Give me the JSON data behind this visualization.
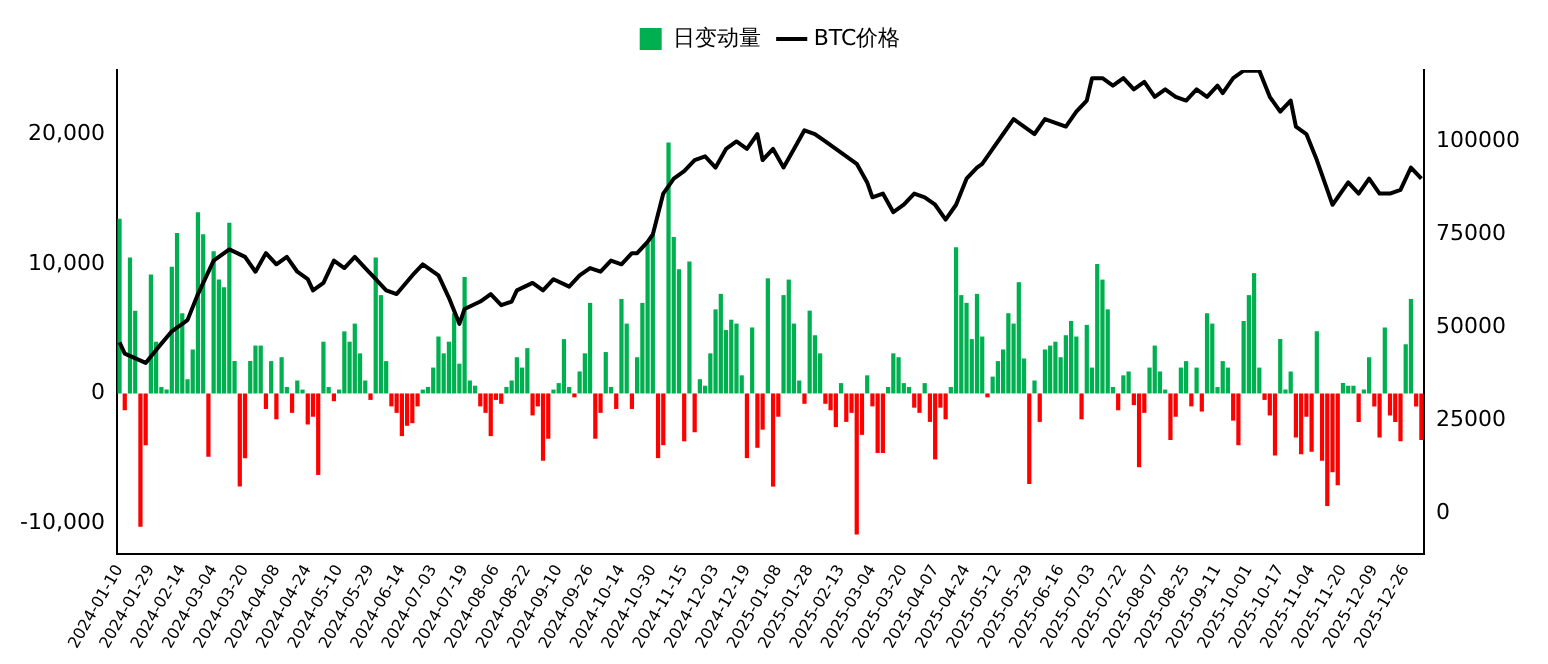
{
  "chart_data": {
    "type": "bar",
    "legend": "top",
    "marker": "none",
    "categories": [
      "2024-01-10",
      null,
      null,
      null,
      null,
      null,
      "2024-01-29",
      null,
      null,
      null,
      null,
      null,
      "2024-02-14",
      null,
      null,
      null,
      null,
      null,
      "2024-03-04",
      null,
      null,
      null,
      null,
      null,
      "2024-03-20",
      null,
      null,
      null,
      null,
      null,
      "2024-04-08",
      null,
      null,
      null,
      null,
      null,
      "2024-04-24",
      null,
      null,
      null,
      null,
      null,
      "2024-05-10",
      null,
      null,
      null,
      null,
      null,
      "2024-05-29",
      null,
      null,
      null,
      null,
      null,
      "2024-06-14",
      null,
      null,
      null,
      null,
      null,
      "2024-07-03",
      null,
      null,
      null,
      null,
      null,
      "2024-07-19",
      null,
      null,
      null,
      null,
      null,
      "2024-08-06",
      null,
      null,
      null,
      null,
      null,
      "2024-08-22",
      null,
      null,
      null,
      null,
      null,
      "2024-09-10",
      null,
      null,
      null,
      null,
      null,
      "2024-09-26",
      null,
      null,
      null,
      null,
      null,
      "2024-10-14",
      null,
      null,
      null,
      null,
      null,
      "2024-10-30",
      null,
      null,
      null,
      null,
      null,
      "2024-11-15",
      null,
      null,
      null,
      null,
      null,
      "2024-12-03",
      null,
      null,
      null,
      null,
      null,
      "2024-12-19",
      null,
      null,
      null,
      null,
      null,
      "2025-01-08",
      null,
      null,
      null,
      null,
      null,
      "2025-01-28",
      null,
      null,
      null,
      null,
      null,
      "2025-02-13",
      null,
      null,
      null,
      null,
      null,
      "2025-03-04",
      null,
      null,
      null,
      null,
      null,
      "2025-03-20",
      null,
      null,
      null,
      null,
      null,
      "2025-04-07",
      null,
      null,
      null,
      null,
      null,
      "2025-04-24",
      null,
      null,
      null,
      null,
      null,
      "2025-05-12",
      null,
      null,
      null,
      null,
      null,
      "2025-05-29",
      null,
      null,
      null,
      null,
      null,
      "2025-06-16",
      null,
      null,
      null,
      null,
      null,
      "2025-07-03",
      null,
      null,
      null,
      null,
      null,
      "2025-07-22",
      null,
      null,
      null,
      null,
      null,
      "2025-08-07",
      null,
      null,
      null,
      null,
      null,
      "2025-08-25",
      null,
      null,
      null,
      null,
      null,
      "2025-09-11",
      null,
      null,
      null,
      null,
      null,
      "2025-10-01",
      null,
      null,
      null,
      null,
      null,
      "2025-10-17",
      null,
      null,
      null,
      null,
      null,
      "2025-11-04",
      null,
      null,
      null,
      null,
      null,
      "2025-11-20",
      null,
      null,
      null,
      null,
      null,
      "2025-12-09",
      null,
      null,
      null,
      null,
      null,
      "2025-12-26",
      null,
      null,
      null
    ],
    "ylim": [
      -12400,
      25000
    ],
    "yticks": [
      {
        "value": -10000,
        "label": "-10,000"
      },
      0,
      {
        "value": 10000,
        "label": "10,000"
      },
      {
        "value": 20000,
        "label": "20,000"
      }
    ],
    "y2lim": [
      -10800,
      119200
    ],
    "y2ticks": [
      0,
      25000,
      50000,
      75000,
      100000
    ],
    "series": [
      {
        "name": "日变动量",
        "color": "#00b050",
        "values": [
          13500,
          -1300,
          10500,
          6400,
          -10300,
          -4000,
          9200,
          4000,
          500,
          300,
          9800,
          12400,
          6200,
          1100,
          3400,
          14000,
          12300,
          -4900,
          11000,
          8800,
          8200,
          13200,
          2500,
          -7200,
          -5000,
          2500,
          3700,
          3700,
          -1200,
          2500,
          -2000,
          2800,
          500,
          -1500,
          1000,
          300,
          -2400,
          -1800,
          -6300,
          4000,
          500,
          -600,
          300,
          4800,
          4000,
          5400,
          3100,
          1000,
          -500,
          10500,
          7600,
          2500,
          -1000,
          -1500,
          -3300,
          -2500,
          -2300,
          -1000,
          300,
          500,
          2000,
          4400,
          3100,
          4000,
          6200,
          2300,
          9000,
          1000,
          600,
          -1000,
          -1500,
          -3300,
          -500,
          -800,
          500,
          1000,
          2800,
          2000,
          3500,
          -1700,
          -1000,
          -5200,
          -3500,
          300,
          800,
          4200,
          500,
          -300,
          1700,
          3100,
          7000,
          -3500,
          -1500,
          3200,
          500,
          -1200,
          7300,
          5400,
          -1200,
          2800,
          7000,
          11600,
          12300,
          -5000,
          -4000,
          19400,
          12100,
          9600,
          -3700,
          10200,
          -3000,
          1100,
          600,
          3100,
          6500,
          7700,
          4900,
          5700,
          5400,
          1400,
          -5000,
          5100,
          -4200,
          -2800,
          8900,
          -7200,
          -1800,
          7600,
          8800,
          5400,
          1000,
          -800,
          6400,
          4500,
          3100,
          -800,
          -1300,
          -2600,
          800,
          -2200,
          -1500,
          -10900,
          -3200,
          1400,
          -1000,
          -4600,
          -4600,
          500,
          3100,
          2800,
          800,
          500,
          -1100,
          -1500,
          800,
          -2200,
          -5100,
          -1100,
          -2000,
          500,
          11300,
          7600,
          7000,
          4200,
          7700,
          4400,
          -300,
          1300,
          2500,
          3400,
          6200,
          5400,
          8600,
          2700,
          -7000,
          1000,
          -2200,
          3400,
          3700,
          4000,
          2800,
          4500,
          5600,
          4400,
          -2000,
          5300,
          2000,
          10000,
          8800,
          6500,
          500,
          -1300,
          1400,
          1700,
          -900,
          -5700,
          -1500,
          2000,
          3700,
          1700,
          300,
          -3600,
          -1800,
          2000,
          2500,
          -1000,
          2000,
          -1400,
          6200,
          5400,
          500,
          2500,
          2000,
          -2100,
          -4000,
          5600,
          7600,
          9300,
          2000,
          -500,
          -1700,
          -4800,
          4200,
          300,
          1700,
          -3400,
          -4700,
          -1800,
          -4500,
          4800,
          -5200,
          -8700,
          -6100,
          -7100,
          800,
          600,
          600,
          -2200,
          300,
          2800,
          -1000,
          -3400,
          5100,
          -1700,
          -2200,
          -3700,
          3800,
          7300,
          -1000,
          -3600
        ],
        "colors": [
          "#00b050",
          "#ff0000",
          "#00b050",
          "#00b050",
          "#ff0000",
          "#ff0000",
          "#00b050",
          "#00b050",
          "#00b050",
          "#00b050",
          "#00b050",
          "#00b050",
          "#00b050",
          "#00b050",
          "#00b050",
          "#00b050",
          "#00b050",
          "#ff0000",
          "#00b050",
          "#00b050",
          "#00b050",
          "#00b050",
          "#00b050",
          "#ff0000",
          "#ff0000",
          "#00b050",
          "#00b050",
          "#00b050",
          "#ff0000",
          "#00b050",
          "#ff0000",
          "#00b050",
          "#00b050",
          "#ff0000",
          "#00b050",
          "#00b050",
          "#ff0000",
          "#ff0000",
          "#ff0000",
          "#00b050",
          "#00b050",
          "#ff0000",
          "#00b050",
          "#00b050",
          "#00b050",
          "#00b050",
          "#00b050",
          "#00b050",
          "#ff0000",
          "#00b050",
          "#00b050",
          "#00b050",
          "#ff0000",
          "#ff0000",
          "#ff0000",
          "#ff0000",
          "#ff0000",
          "#ff0000",
          "#00b050",
          "#00b050",
          "#00b050",
          "#00b050",
          "#00b050",
          "#00b050",
          "#00b050",
          "#00b050",
          "#00b050",
          "#00b050",
          "#00b050",
          "#ff0000",
          "#ff0000",
          "#ff0000",
          "#ff0000",
          "#ff0000",
          "#00b050",
          "#00b050",
          "#00b050",
          "#00b050",
          "#00b050",
          "#ff0000",
          "#ff0000",
          "#ff0000",
          "#ff0000",
          "#00b050",
          "#00b050",
          "#00b050",
          "#00b050",
          "#ff0000",
          "#00b050",
          "#00b050",
          "#00b050",
          "#ff0000",
          "#ff0000",
          "#00b050",
          "#00b050",
          "#ff0000",
          "#00b050",
          "#00b050",
          "#ff0000",
          "#00b050",
          "#00b050",
          "#00b050",
          "#00b050",
          "#ff0000",
          "#ff0000",
          "#00b050",
          "#00b050",
          "#00b050",
          "#ff0000",
          "#00b050",
          "#ff0000",
          "#00b050",
          "#00b050",
          "#00b050",
          "#00b050",
          "#00b050",
          "#00b050",
          "#00b050",
          "#00b050",
          "#00b050",
          "#ff0000",
          "#00b050",
          "#ff0000",
          "#ff0000",
          "#00b050",
          "#ff0000",
          "#ff0000",
          "#00b050",
          "#00b050",
          "#00b050",
          "#00b050",
          "#ff0000",
          "#00b050",
          "#00b050",
          "#00b050",
          "#ff0000",
          "#ff0000",
          "#ff0000",
          "#00b050",
          "#ff0000",
          "#ff0000",
          "#ff0000",
          "#ff0000",
          "#00b050",
          "#ff0000",
          "#ff0000",
          "#ff0000",
          "#00b050",
          "#00b050",
          "#00b050",
          "#00b050",
          "#00b050",
          "#ff0000",
          "#ff0000",
          "#00b050",
          "#ff0000",
          "#ff0000",
          "#ff0000",
          "#ff0000",
          "#00b050",
          "#00b050",
          "#00b050",
          "#00b050",
          "#00b050",
          "#00b050",
          "#00b050",
          "#ff0000",
          "#00b050",
          "#00b050",
          "#00b050",
          "#00b050",
          "#00b050",
          "#00b050",
          "#00b050",
          "#ff0000",
          "#00b050",
          "#ff0000",
          "#00b050",
          "#00b050",
          "#00b050",
          "#00b050",
          "#00b050",
          "#00b050",
          "#00b050",
          "#ff0000",
          "#00b050",
          "#00b050",
          "#00b050",
          "#00b050",
          "#00b050",
          "#00b050",
          "#ff0000",
          "#00b050",
          "#00b050",
          "#ff0000",
          "#ff0000",
          "#ff0000",
          "#00b050",
          "#00b050",
          "#00b050",
          "#00b050",
          "#ff0000",
          "#ff0000",
          "#00b050",
          "#00b050",
          "#ff0000",
          "#00b050",
          "#ff0000",
          "#00b050",
          "#00b050",
          "#00b050",
          "#00b050",
          "#00b050",
          "#ff0000",
          "#ff0000",
          "#00b050",
          "#00b050",
          "#00b050",
          "#00b050",
          "#ff0000",
          "#ff0000",
          "#ff0000",
          "#00b050",
          "#00b050",
          "#00b050",
          "#ff0000",
          "#ff0000",
          "#ff0000",
          "#ff0000",
          "#00b050",
          "#ff0000",
          "#ff0000",
          "#ff0000",
          "#ff0000",
          "#00b050",
          "#00b050",
          "#00b050",
          "#ff0000",
          "#00b050",
          "#00b050",
          "#ff0000",
          "#ff0000",
          "#00b050",
          "#ff0000",
          "#ff0000",
          "#ff0000",
          "#00b050",
          "#00b050",
          "#ff0000",
          "#ff0000"
        ]
      },
      {
        "name": "BTC价格",
        "type": "line",
        "color": "#000000",
        "axis": "y2",
        "values": [
          46000,
          43000,
          null,
          null,
          null,
          40500,
          null,
          44000,
          null,
          null,
          49000,
          null,
          null,
          52000,
          null,
          59000,
          null,
          null,
          68000,
          null,
          null,
          71000,
          null,
          null,
          69000,
          null,
          65000,
          null,
          70000,
          null,
          67000,
          null,
          69000,
          null,
          65000,
          null,
          63000,
          60000,
          null,
          62000,
          null,
          68000,
          null,
          66000,
          null,
          69000,
          null,
          66000,
          null,
          63000,
          null,
          60000,
          null,
          59000,
          null,
          null,
          64000,
          null,
          67000,
          null,
          null,
          64000,
          null,
          58000,
          null,
          51000,
          55000,
          null,
          null,
          57000,
          null,
          59000,
          null,
          56000,
          null,
          57000,
          60000,
          null,
          null,
          62000,
          null,
          60000,
          null,
          63000,
          null,
          null,
          61000,
          null,
          64000,
          null,
          66000,
          null,
          65000,
          null,
          68000,
          null,
          67000,
          null,
          70000,
          70000,
          null,
          73000,
          75000,
          null,
          86000,
          null,
          90000,
          null,
          92000,
          null,
          95000,
          null,
          96000,
          null,
          93000,
          null,
          98000,
          null,
          100000,
          null,
          98000,
          null,
          102000,
          95000,
          null,
          98000,
          null,
          93000,
          null,
          98000,
          null,
          103000,
          null,
          102000,
          null,
          100000,
          null,
          98000,
          null,
          96000,
          null,
          94000,
          null,
          89000,
          85000,
          null,
          86000,
          null,
          81000,
          null,
          83000,
          null,
          86000,
          null,
          85000,
          null,
          83000,
          null,
          79000,
          null,
          83000,
          null,
          90000,
          null,
          93000,
          94000,
          null,
          98000,
          null,
          102000,
          null,
          106000,
          null,
          104000,
          null,
          102000,
          null,
          106000,
          null,
          105000,
          null,
          104000,
          null,
          108000,
          null,
          111000,
          117000,
          null,
          117000,
          null,
          115000,
          null,
          117000,
          null,
          114000,
          null,
          116000,
          null,
          112000,
          null,
          114000,
          null,
          112000,
          null,
          111000,
          null,
          114000,
          null,
          112000,
          null,
          115000,
          113000,
          null,
          117000,
          null,
          119000,
          null,
          null,
          119000,
          null,
          112000,
          null,
          108000,
          null,
          111000,
          104000,
          null,
          102000,
          null,
          95000,
          null,
          87000,
          83000,
          null,
          87000,
          89000,
          null,
          86000,
          null,
          90000,
          null,
          86000,
          null,
          86000,
          null,
          87000,
          null,
          93000,
          null,
          90000
        ]
      }
    ]
  }
}
